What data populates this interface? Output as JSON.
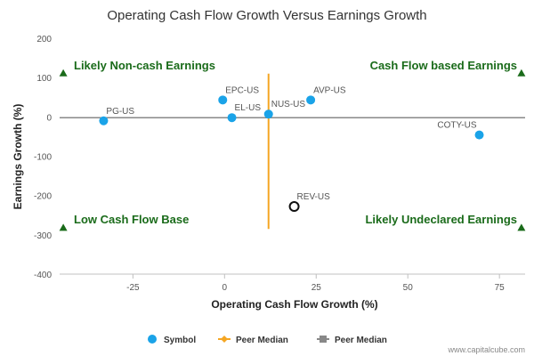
{
  "chart_data": {
    "type": "scatter",
    "title": "Operating Cash Flow Growth Versus Earnings Growth",
    "xlabel": "Operating Cash Flow Growth (%)",
    "ylabel": "Earnings Growth (%)",
    "xlim": [
      -45,
      82
    ],
    "ylim": [
      -400,
      200
    ],
    "x_ticks": [
      -25,
      0,
      25,
      50,
      75
    ],
    "y_ticks": [
      200,
      100,
      0,
      -100,
      -200,
      -300,
      -400
    ],
    "grid": false,
    "points": [
      {
        "label": "PG-US",
        "x": -33,
        "y": -10,
        "style": "filled"
      },
      {
        "label": "EPC-US",
        "x": -0.5,
        "y": 43,
        "style": "filled"
      },
      {
        "label": "EL-US",
        "x": 2,
        "y": -2,
        "style": "filled"
      },
      {
        "label": "NUS-US",
        "x": 12,
        "y": 7,
        "style": "filled"
      },
      {
        "label": "AVP-US",
        "x": 23.5,
        "y": 43,
        "style": "filled"
      },
      {
        "label": "COTY-US",
        "x": 69.5,
        "y": -46,
        "style": "filled"
      },
      {
        "label": "REV-US",
        "x": 19,
        "y": -228,
        "style": "hollow"
      }
    ],
    "peer_median_x": 12,
    "peer_median_y": -2,
    "vertical_median_range": [
      -285,
      110
    ],
    "quadrant_labels": [
      {
        "text": "Likely Non-cash Earnings",
        "pos": "top-left"
      },
      {
        "text": "Cash Flow based Earnings",
        "pos": "top-right"
      },
      {
        "text": "Low Cash Flow Base",
        "pos": "bottom-left"
      },
      {
        "text": "Likely Undeclared Earnings",
        "pos": "bottom-right"
      }
    ],
    "quadrant_markers": [
      {
        "x": -44,
        "y": 110
      },
      {
        "x": 81,
        "y": 110
      },
      {
        "x": -44,
        "y": -283
      },
      {
        "x": 81,
        "y": -283
      }
    ],
    "legend": {
      "placement": "bottom",
      "items": [
        {
          "label": "Symbol",
          "kind": "circle"
        },
        {
          "label": "Peer Median",
          "kind": "orange-line"
        },
        {
          "label": "Peer Median",
          "kind": "gray-line"
        }
      ]
    },
    "colors": {
      "point": "#1aa3e8",
      "orange_median": "#f5a623",
      "gray_median": "#888888",
      "quad_label": "#1a6b1a",
      "marker": "#1a6b1a"
    }
  },
  "credit": "www.capitalcube.com"
}
